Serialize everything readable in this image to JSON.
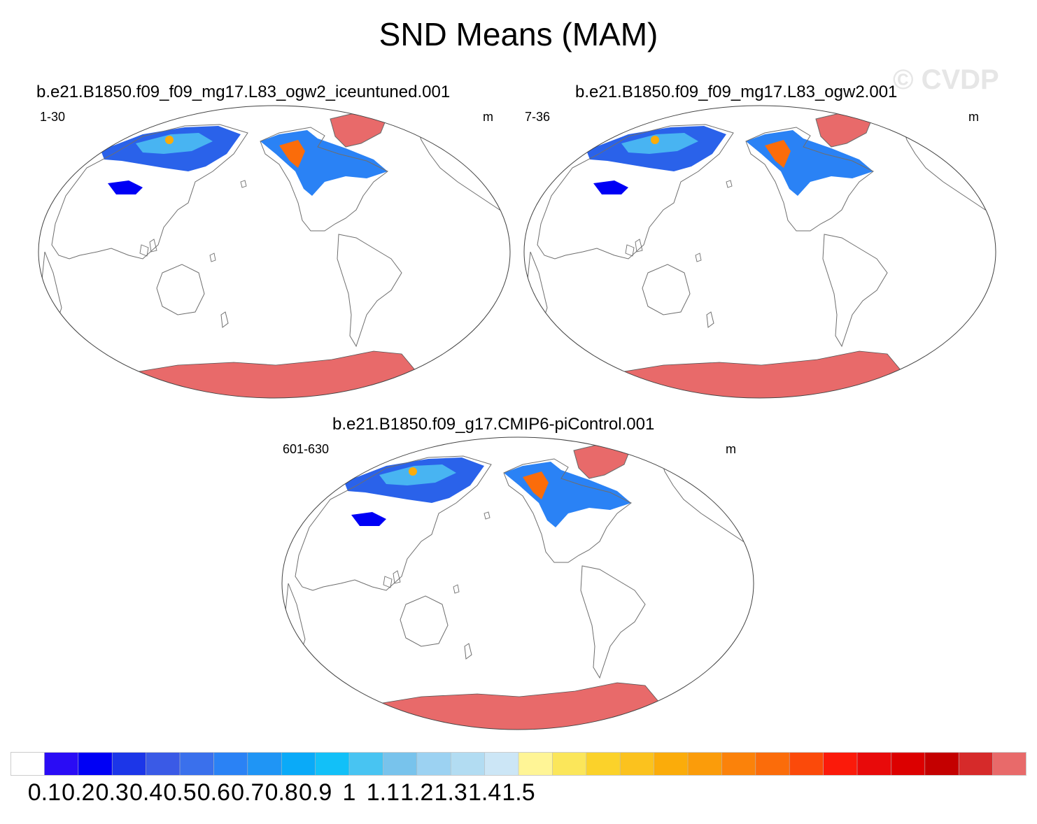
{
  "title": "SND Means (MAM)",
  "watermark": "© CVDP",
  "panels": [
    {
      "title": "b.e21.B1850.f09_f09_mg17.L83_ogw2_iceuntuned.001",
      "years": "1-30",
      "units": "m"
    },
    {
      "title": "b.e21.B1850.f09_f09_mg17.L83_ogw2.001",
      "years": "7-36",
      "units": "m"
    },
    {
      "title": "b.e21.B1850.f09_g17.CMIP6-piControl.001",
      "years": "601-630",
      "units": "m"
    }
  ],
  "colorbar": {
    "labels": [
      "0.1",
      "0.2",
      "0.3",
      "0.4",
      "0.5",
      "0.6",
      "0.7",
      "0.8",
      "0.9",
      "1",
      "1.1",
      "1.2",
      "1.3",
      "1.4",
      "1.5"
    ],
    "colors": [
      "#ffffff",
      "#2a0cf5",
      "#0000f5",
      "#1c36e8",
      "#3a5ae6",
      "#3a70ec",
      "#2a82f5",
      "#1f95f5",
      "#0aaaf8",
      "#12c0f8",
      "#48c4f2",
      "#78c3ec",
      "#9cd2f2",
      "#b2dcf2",
      "#cce6f6",
      "#fff596",
      "#fbe65a",
      "#fbd22a",
      "#fbc21e",
      "#fbac0a",
      "#fb9c0a",
      "#fb820a",
      "#fb6c0a",
      "#fb4a0a",
      "#fb1a0a",
      "#e80a0a",
      "#dc0000",
      "#c40000",
      "#d62a2a",
      "#e86a6a"
    ]
  }
}
